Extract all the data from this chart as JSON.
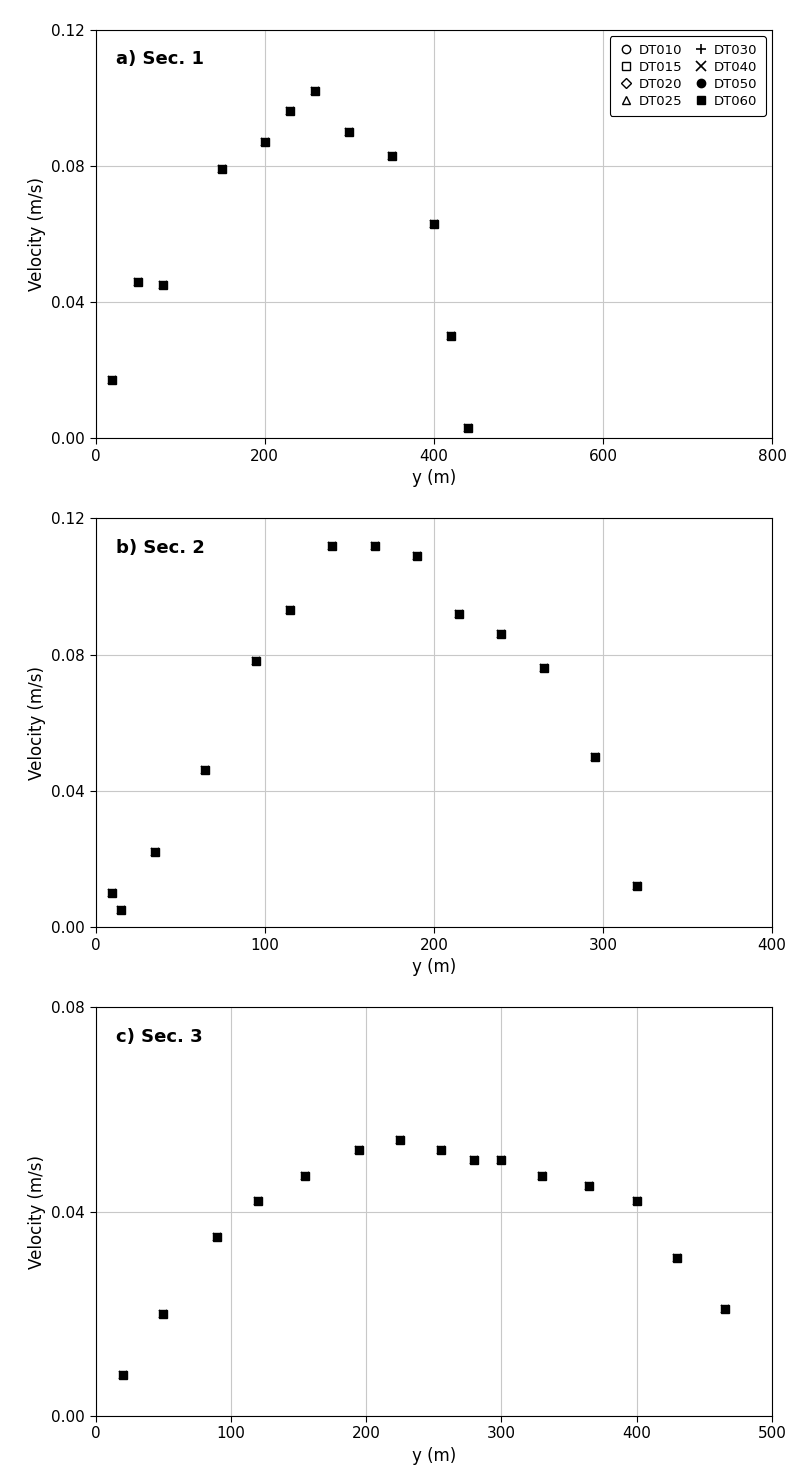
{
  "sec1": {
    "label": "a) Sec. 1",
    "xlim": [
      0,
      800
    ],
    "ylim": [
      0,
      0.12
    ],
    "xticks": [
      0,
      200,
      400,
      600,
      800
    ],
    "yticks": [
      0.0,
      0.04,
      0.08,
      0.12
    ],
    "x": [
      20,
      50,
      80,
      150,
      200,
      230,
      260,
      300,
      350,
      400,
      420,
      440
    ],
    "y": [
      0.017,
      0.046,
      0.045,
      0.079,
      0.087,
      0.096,
      0.102,
      0.09,
      0.083,
      0.063,
      0.03,
      0.003
    ]
  },
  "sec2": {
    "label": "b) Sec. 2",
    "xlim": [
      0,
      400
    ],
    "ylim": [
      0,
      0.12
    ],
    "xticks": [
      0,
      100,
      200,
      300,
      400
    ],
    "yticks": [
      0.0,
      0.04,
      0.08,
      0.12
    ],
    "x": [
      10,
      15,
      35,
      65,
      95,
      115,
      140,
      165,
      190,
      215,
      240,
      265,
      295,
      320
    ],
    "y": [
      0.01,
      0.005,
      0.022,
      0.046,
      0.078,
      0.093,
      0.112,
      0.112,
      0.109,
      0.092,
      0.086,
      0.076,
      0.05,
      0.012
    ]
  },
  "sec3": {
    "label": "c) Sec. 3",
    "xlim": [
      0,
      500
    ],
    "ylim": [
      0,
      0.08
    ],
    "xticks": [
      0,
      100,
      200,
      300,
      400,
      500
    ],
    "yticks": [
      0.0,
      0.04,
      0.08
    ],
    "x": [
      20,
      50,
      90,
      120,
      155,
      195,
      225,
      255,
      280,
      300,
      330,
      365,
      400,
      430,
      465
    ],
    "y": [
      0.008,
      0.02,
      0.035,
      0.042,
      0.047,
      0.052,
      0.054,
      0.052,
      0.05,
      0.05,
      0.047,
      0.045,
      0.042,
      0.031,
      0.021
    ]
  },
  "legend_col1": [
    {
      "label": "DT010",
      "marker": "o",
      "filled": false
    },
    {
      "label": "DT020",
      "marker": "D",
      "filled": false
    },
    {
      "label": "DT030",
      "marker": "+",
      "filled": false
    },
    {
      "label": "DT050",
      "marker": "o",
      "filled": true
    }
  ],
  "legend_col2": [
    {
      "label": "DT015",
      "marker": "s",
      "filled": false
    },
    {
      "label": "DT025",
      "marker": "^",
      "filled": false
    },
    {
      "label": "DT040",
      "marker": "x",
      "filled": false
    },
    {
      "label": "DT060",
      "marker": "s",
      "filled": true
    }
  ],
  "ylabel": "Velocity (m/s)",
  "xlabel": "y (m)"
}
